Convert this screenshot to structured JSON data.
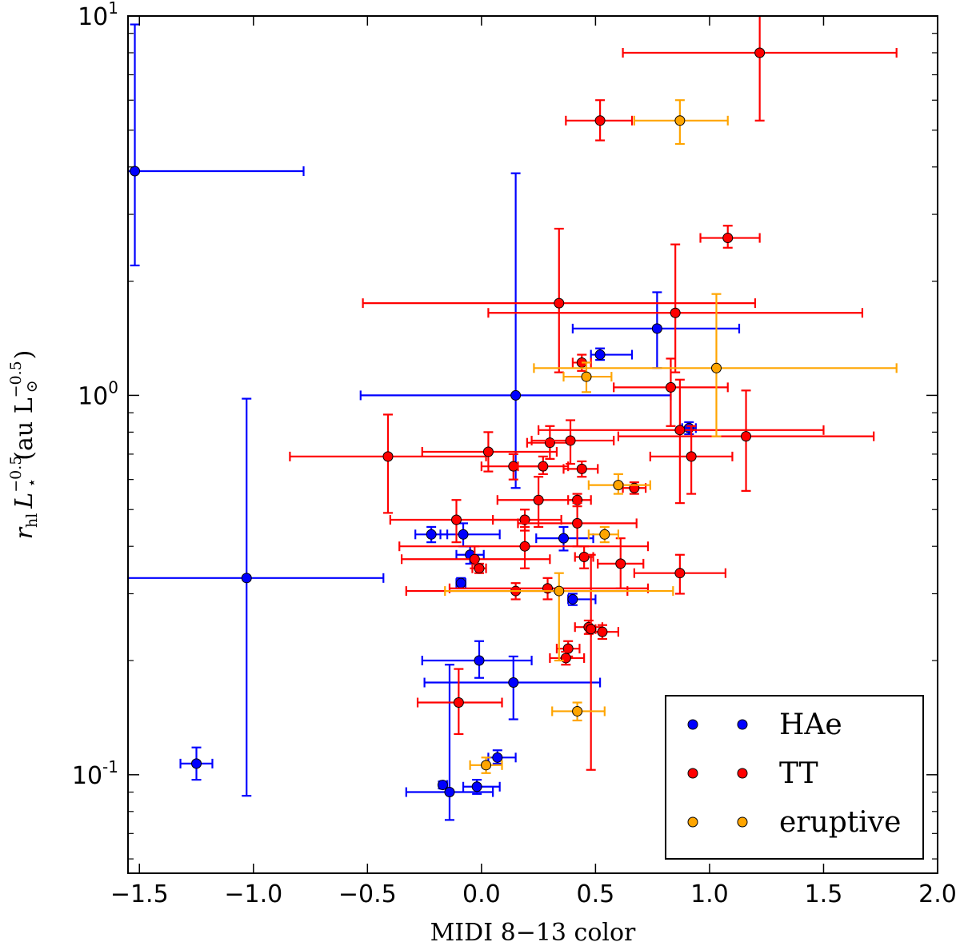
{
  "chart_data": {
    "type": "scatter",
    "xlabel": "MIDI 8−13 color",
    "ylabel": {
      "main": "r",
      "main_sub": "hl",
      "l_sym": "L",
      "l_sub": "⋆",
      "l_sup": "−0.5",
      "units_open": "(au L",
      "units_sub": "⊙",
      "units_sup": "−0.5",
      "units_close": ")"
    },
    "xlim": [
      -1.55,
      2.0
    ],
    "ylim": [
      0.055,
      10
    ],
    "y_scale": "log",
    "x_ticks": [
      {
        "value": -1.5,
        "label": "−1.5"
      },
      {
        "value": -1.0,
        "label": "−1.0"
      },
      {
        "value": -0.5,
        "label": "−0.5"
      },
      {
        "value": 0.0,
        "label": "0.0"
      },
      {
        "value": 0.5,
        "label": "0.5"
      },
      {
        "value": 1.0,
        "label": "1.0"
      },
      {
        "value": 1.5,
        "label": "1.5"
      },
      {
        "value": 2.0,
        "label": "2.0"
      }
    ],
    "y_ticks": [
      {
        "value": 0.1,
        "base": "10",
        "exp": "-1"
      },
      {
        "value": 1,
        "base": "10",
        "exp": "0"
      },
      {
        "value": 10,
        "base": "10",
        "exp": "1"
      }
    ],
    "legend_position": "lower right",
    "series": [
      {
        "name": "HAe",
        "color": "#0000ff",
        "points": [
          {
            "x": -1.52,
            "y": 3.9,
            "xlo": -1.55,
            "xhi": -0.78,
            "ylo": 2.2,
            "yhi": 9.5
          },
          {
            "x": -1.03,
            "y": 0.33,
            "xlo": -1.55,
            "xhi": -0.43,
            "ylo": 0.088,
            "yhi": 0.98
          },
          {
            "x": -1.25,
            "y": 0.107,
            "xlo": -1.32,
            "xhi": -1.18,
            "ylo": 0.097,
            "yhi": 0.118
          },
          {
            "x": 0.15,
            "y": 1.0,
            "xlo": -0.53,
            "xhi": 0.83,
            "ylo": 0.57,
            "yhi": 3.85
          },
          {
            "x": 0.77,
            "y": 1.5,
            "xlo": 0.4,
            "xhi": 1.13,
            "ylo": 1.18,
            "yhi": 1.87
          },
          {
            "x": 0.52,
            "y": 1.28,
            "xlo": 0.48,
            "xhi": 0.66,
            "ylo": 1.24,
            "yhi": 1.33
          },
          {
            "x": 0.91,
            "y": 0.82,
            "xlo": 0.88,
            "xhi": 0.94,
            "ylo": 0.79,
            "yhi": 0.85
          },
          {
            "x": -0.22,
            "y": 0.43,
            "xlo": -0.29,
            "xhi": -0.15,
            "ylo": 0.41,
            "yhi": 0.45
          },
          {
            "x": -0.08,
            "y": 0.43,
            "xlo": -0.18,
            "xhi": 0.08,
            "ylo": 0.4,
            "yhi": 0.46
          },
          {
            "x": -0.05,
            "y": 0.38,
            "xlo": -0.11,
            "xhi": 0.01,
            "ylo": 0.36,
            "yhi": 0.4
          },
          {
            "x": -0.09,
            "y": 0.32,
            "xlo": -0.11,
            "xhi": -0.07,
            "ylo": 0.31,
            "yhi": 0.33
          },
          {
            "x": 0.36,
            "y": 0.42,
            "xlo": 0.24,
            "xhi": 0.49,
            "ylo": 0.39,
            "yhi": 0.45
          },
          {
            "x": 0.4,
            "y": 0.29,
            "xlo": 0.38,
            "xhi": 0.5,
            "ylo": 0.28,
            "yhi": 0.3
          },
          {
            "x": -0.01,
            "y": 0.2,
            "xlo": -0.26,
            "xhi": 0.22,
            "ylo": 0.18,
            "yhi": 0.225
          },
          {
            "x": 0.14,
            "y": 0.175,
            "xlo": -0.25,
            "xhi": 0.52,
            "ylo": 0.14,
            "yhi": 0.205
          },
          {
            "x": -0.17,
            "y": 0.094,
            "xlo": -0.18,
            "xhi": -0.15,
            "ylo": 0.092,
            "yhi": 0.096
          },
          {
            "x": -0.14,
            "y": 0.09,
            "xlo": -0.33,
            "xhi": 0.05,
            "ylo": 0.076,
            "yhi": 0.195
          },
          {
            "x": -0.02,
            "y": 0.093,
            "xlo": -0.08,
            "xhi": 0.08,
            "ylo": 0.089,
            "yhi": 0.097
          },
          {
            "x": 0.07,
            "y": 0.111,
            "xlo": 0.03,
            "xhi": 0.15,
            "ylo": 0.107,
            "yhi": 0.116
          }
        ]
      },
      {
        "name": "TT",
        "color": "#ff0000",
        "points": [
          {
            "x": 1.22,
            "y": 8.0,
            "xlo": 0.62,
            "xhi": 1.82,
            "ylo": 5.3,
            "yhi": 10.5
          },
          {
            "x": 0.52,
            "y": 5.3,
            "xlo": 0.37,
            "xhi": 0.66,
            "ylo": 4.7,
            "yhi": 6.0
          },
          {
            "x": 1.08,
            "y": 2.6,
            "xlo": 0.96,
            "xhi": 1.22,
            "ylo": 2.45,
            "yhi": 2.8
          },
          {
            "x": 0.34,
            "y": 1.75,
            "xlo": -0.52,
            "xhi": 1.2,
            "ylo": 1.15,
            "yhi": 2.75
          },
          {
            "x": 0.85,
            "y": 1.65,
            "xlo": 0.03,
            "xhi": 1.67,
            "ylo": 1.15,
            "yhi": 2.5
          },
          {
            "x": 0.44,
            "y": 1.22,
            "xlo": 0.4,
            "xhi": 0.48,
            "ylo": 1.16,
            "yhi": 1.28
          },
          {
            "x": 0.83,
            "y": 1.05,
            "xlo": 0.58,
            "xhi": 1.08,
            "ylo": 0.83,
            "yhi": 1.25
          },
          {
            "x": 0.87,
            "y": 0.81,
            "xlo": 0.25,
            "xhi": 1.5,
            "ylo": 0.52,
            "yhi": 1.1
          },
          {
            "x": 1.16,
            "y": 0.78,
            "xlo": 0.6,
            "xhi": 1.72,
            "ylo": 0.56,
            "yhi": 1.03
          },
          {
            "x": 0.92,
            "y": 0.69,
            "xlo": 0.74,
            "xhi": 1.1,
            "ylo": 0.55,
            "yhi": 0.83
          },
          {
            "x": -0.41,
            "y": 0.69,
            "xlo": -0.84,
            "xhi": 0.02,
            "ylo": 0.49,
            "yhi": 0.89
          },
          {
            "x": 0.03,
            "y": 0.71,
            "xlo": -0.26,
            "xhi": 0.33,
            "ylo": 0.63,
            "yhi": 0.8
          },
          {
            "x": 0.3,
            "y": 0.75,
            "xlo": 0.2,
            "xhi": 0.39,
            "ylo": 0.68,
            "yhi": 0.83
          },
          {
            "x": 0.39,
            "y": 0.76,
            "xlo": 0.22,
            "xhi": 0.58,
            "ylo": 0.66,
            "yhi": 0.86
          },
          {
            "x": 0.14,
            "y": 0.65,
            "xlo": 0.0,
            "xhi": 0.28,
            "ylo": 0.6,
            "yhi": 0.7
          },
          {
            "x": 0.27,
            "y": 0.65,
            "xlo": 0.16,
            "xhi": 0.38,
            "ylo": 0.62,
            "yhi": 0.69
          },
          {
            "x": 0.44,
            "y": 0.64,
            "xlo": 0.36,
            "xhi": 0.51,
            "ylo": 0.61,
            "yhi": 0.67
          },
          {
            "x": 0.67,
            "y": 0.57,
            "xlo": 0.62,
            "xhi": 0.72,
            "ylo": 0.55,
            "yhi": 0.59
          },
          {
            "x": 0.25,
            "y": 0.53,
            "xlo": 0.07,
            "xhi": 0.43,
            "ylo": 0.45,
            "yhi": 0.61
          },
          {
            "x": 0.42,
            "y": 0.53,
            "xlo": 0.38,
            "xhi": 0.48,
            "ylo": 0.51,
            "yhi": 0.55
          },
          {
            "x": -0.11,
            "y": 0.47,
            "xlo": -0.4,
            "xhi": 0.18,
            "ylo": 0.41,
            "yhi": 0.53
          },
          {
            "x": 0.19,
            "y": 0.47,
            "xlo": 0.05,
            "xhi": 0.35,
            "ylo": 0.44,
            "yhi": 0.5
          },
          {
            "x": 0.42,
            "y": 0.46,
            "xlo": 0.16,
            "xhi": 0.68,
            "ylo": 0.4,
            "yhi": 0.52
          },
          {
            "x": 0.19,
            "y": 0.4,
            "xlo": -0.36,
            "xhi": 0.73,
            "ylo": 0.35,
            "yhi": 0.45
          },
          {
            "x": -0.03,
            "y": 0.37,
            "xlo": -0.35,
            "xhi": 0.3,
            "ylo": 0.35,
            "yhi": 0.4
          },
          {
            "x": -0.01,
            "y": 0.35,
            "xlo": -0.04,
            "xhi": 0.02,
            "ylo": 0.34,
            "yhi": 0.36
          },
          {
            "x": 0.45,
            "y": 0.375,
            "xlo": 0.41,
            "xhi": 0.49,
            "ylo": 0.35,
            "yhi": 0.4
          },
          {
            "x": 0.61,
            "y": 0.36,
            "xlo": 0.51,
            "xhi": 0.71,
            "ylo": 0.31,
            "yhi": 0.42
          },
          {
            "x": 0.87,
            "y": 0.34,
            "xlo": 0.67,
            "xhi": 1.07,
            "ylo": 0.3,
            "yhi": 0.38
          },
          {
            "x": 0.15,
            "y": 0.305,
            "xlo": -0.33,
            "xhi": 0.64,
            "ylo": 0.29,
            "yhi": 0.32
          },
          {
            "x": 0.29,
            "y": 0.31,
            "xlo": -0.14,
            "xhi": 0.73,
            "ylo": 0.29,
            "yhi": 0.33
          },
          {
            "x": 0.47,
            "y": 0.245,
            "xlo": 0.41,
            "xhi": 0.53,
            "ylo": 0.235,
            "yhi": 0.255
          },
          {
            "x": 0.53,
            "y": 0.238,
            "xlo": 0.48,
            "xhi": 0.6,
            "ylo": 0.228,
            "yhi": 0.248
          },
          {
            "x": 0.38,
            "y": 0.215,
            "xlo": 0.33,
            "xhi": 0.43,
            "ylo": 0.205,
            "yhi": 0.225
          },
          {
            "x": 0.37,
            "y": 0.203,
            "xlo": 0.3,
            "xhi": 0.45,
            "ylo": 0.195,
            "yhi": 0.211
          },
          {
            "x": -0.1,
            "y": 0.155,
            "xlo": -0.28,
            "xhi": 0.09,
            "ylo": 0.128,
            "yhi": 0.19
          },
          {
            "x": 0.48,
            "y": 0.242,
            "xlo": 0.46,
            "xhi": 0.5,
            "ylo": 0.103,
            "yhi": 0.38
          }
        ]
      },
      {
        "name": "eruptive",
        "color": "#ffa500",
        "points": [
          {
            "x": 0.87,
            "y": 5.3,
            "xlo": 0.67,
            "xhi": 1.08,
            "ylo": 4.6,
            "yhi": 6.0
          },
          {
            "x": 1.03,
            "y": 1.18,
            "xlo": 0.23,
            "xhi": 1.82,
            "ylo": 0.78,
            "yhi": 1.85
          },
          {
            "x": 0.46,
            "y": 1.12,
            "xlo": 0.36,
            "xhi": 0.57,
            "ylo": 1.02,
            "yhi": 1.22
          },
          {
            "x": 0.6,
            "y": 0.58,
            "xlo": 0.47,
            "xhi": 0.74,
            "ylo": 0.55,
            "yhi": 0.62
          },
          {
            "x": 0.54,
            "y": 0.43,
            "xlo": 0.47,
            "xhi": 0.6,
            "ylo": 0.41,
            "yhi": 0.45
          },
          {
            "x": 0.34,
            "y": 0.305,
            "xlo": -0.16,
            "xhi": 0.84,
            "ylo": 0.2,
            "yhi": 0.34
          },
          {
            "x": 0.42,
            "y": 0.147,
            "xlo": 0.31,
            "xhi": 0.54,
            "ylo": 0.139,
            "yhi": 0.155
          },
          {
            "x": 0.02,
            "y": 0.106,
            "xlo": -0.05,
            "xhi": 0.09,
            "ylo": 0.101,
            "yhi": 0.111
          }
        ]
      }
    ]
  }
}
